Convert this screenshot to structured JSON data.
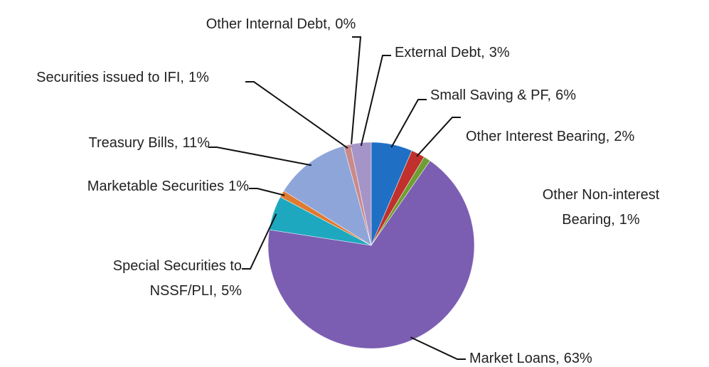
{
  "chart_data": {
    "type": "pie",
    "categories": [
      "Small Saving & PF,",
      "Other Interest Bearing,",
      "Other Non-interest Bearing,",
      "Market Loans,",
      "Special Securities to NSSF/PLI,",
      "Marketable Securities",
      "Treasury Bills,",
      "Securities issued to IFI,",
      "Other Internal Debt,",
      "External Debt,"
    ],
    "values": [
      6,
      2,
      1,
      63,
      5,
      1,
      11,
      1,
      0,
      3
    ],
    "value_labels": [
      "6%",
      "2%",
      "1%",
      "63%",
      "5%",
      "1%",
      "11%",
      "1%",
      "0%",
      "3%"
    ],
    "colors": [
      "#1f6fc5",
      "#c0302c",
      "#6f9e32",
      "#7b5db2",
      "#1ea8bf",
      "#e07a30",
      "#8ea5d9",
      "#c98a8a",
      "#b4b4b4",
      "#a594c8"
    ]
  }
}
